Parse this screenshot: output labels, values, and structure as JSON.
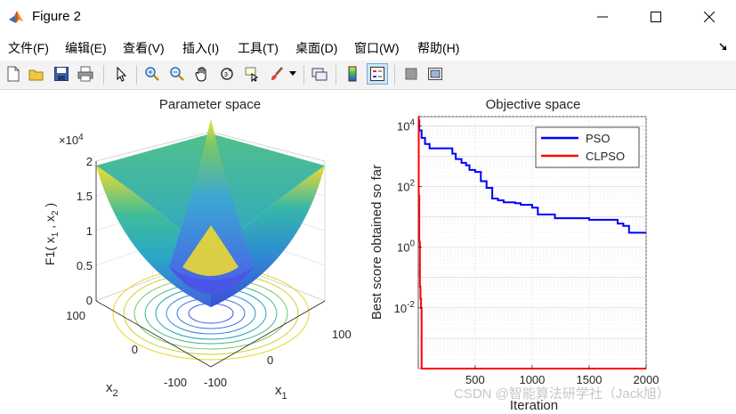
{
  "window": {
    "title": "Figure 2"
  },
  "menu": {
    "items": [
      "文件(F)",
      "编辑(E)",
      "查看(V)",
      "插入(I)",
      "工具(T)",
      "桌面(D)",
      "窗口(W)",
      "帮助(H)"
    ]
  },
  "toolbar": {
    "icons": [
      "new-figure-icon",
      "open-file-icon",
      "save-icon",
      "print-icon",
      "pointer-icon",
      "zoom-in-icon",
      "zoom-out-icon",
      "pan-icon",
      "rotate-3d-icon",
      "data-cursor-icon",
      "brush-icon",
      "brush-dropdown-icon",
      "link-plot-icon",
      "insert-colorbar-icon",
      "insert-legend-icon",
      "hide-plot-tools-icon",
      "show-plot-tools-icon"
    ]
  },
  "left_plot": {
    "title": "Parameter space",
    "zlabel": "F1( x_1 , x_2 )",
    "z_exponent": "×10^4",
    "z_ticks": [
      "0",
      "0.5",
      "1",
      "1.5",
      "2"
    ],
    "x1_label": "x_1",
    "x2_label": "x_2",
    "x1_ticks": [
      "-100",
      "0",
      "100"
    ],
    "x2_ticks": [
      "-100",
      "0",
      "100"
    ]
  },
  "chart_data": {
    "type": "line",
    "title": "Objective space",
    "xlabel": "Iteration",
    "ylabel": "Best score obtained so far",
    "xlim": [
      1,
      2000
    ],
    "ylim": [
      0.0001,
      20000
    ],
    "yscale": "log",
    "x_ticks": [
      500,
      1000,
      1500,
      2000
    ],
    "y_ticks": [
      "10^4",
      "10^2",
      "10^0",
      "10^-2"
    ],
    "grid": true,
    "legend": "top-right",
    "series": [
      {
        "name": "PSO",
        "color": "#0000ff",
        "x": [
          1,
          10,
          30,
          60,
          100,
          200,
          300,
          330,
          380,
          420,
          450,
          500,
          550,
          600,
          650,
          700,
          750,
          800,
          850,
          900,
          1000,
          1050,
          1200,
          1300,
          1400,
          1500,
          1700,
          1750,
          1800,
          1850,
          2000
        ],
        "y": [
          15000,
          7000,
          4000,
          2500,
          1800,
          1800,
          1200,
          800,
          600,
          500,
          350,
          300,
          150,
          90,
          40,
          35,
          30,
          30,
          28,
          25,
          20,
          12,
          9,
          9,
          9,
          8,
          8,
          6,
          5,
          3,
          3
        ]
      },
      {
        "name": "CLPSO",
        "color": "#ff0000",
        "x": [
          1,
          5,
          10,
          15,
          20,
          25,
          30,
          35,
          50,
          100,
          2000
        ],
        "y": [
          20000,
          50,
          1.5,
          0.05,
          0.02,
          0.01,
          0.0001,
          5e-05,
          5e-05,
          5e-05,
          5e-05
        ]
      }
    ]
  },
  "watermark": "CSDN @智能算法研学社（Jack旭）"
}
